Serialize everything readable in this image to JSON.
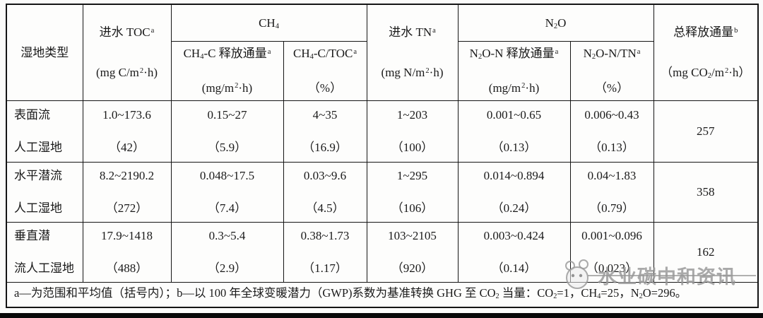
{
  "table": {
    "header": {
      "wetland_type": "湿地类型",
      "influent_toc": {
        "title": "进水 TOC^a^",
        "unit": "(mg C/m^2^·h)"
      },
      "ch4_group": "CH{4}",
      "ch4_flux": {
        "title": "CH{4}-C 释放通量^a^",
        "unit": "(mg/m^2^·h)"
      },
      "ch4_ratio": {
        "title": "CH{4}-C/TOC^a^",
        "unit": "（%）"
      },
      "influent_tn": {
        "title": "进水 TN^a^",
        "unit": "(mg N/m^2^·h)"
      },
      "n2o_group": "N{2}O",
      "n2o_flux": {
        "title": "N{2}O-N 释放通量^a^",
        "unit": "(mg/m^2^·h)"
      },
      "n2o_ratio": {
        "title": "N{2}O-N/TN^a^",
        "unit": "（%）"
      },
      "total_flux": {
        "title": "总释放通量^b^",
        "unit": "（mg CO{2}/m^2^·h）"
      }
    },
    "rows": [
      {
        "cells": [
          {
            "l1": "表面流",
            "l2": "人工湿地"
          },
          {
            "l1": "1.0~173.6",
            "l2": "（42）"
          },
          {
            "l1": "0.15~27",
            "l2": "（5.9）"
          },
          {
            "l1": "4~35",
            "l2": "（16.9）"
          },
          {
            "l1": "1~203",
            "l2": "（100）"
          },
          {
            "l1": "0.001~0.65",
            "l2": "（0.13）"
          },
          {
            "l1": "0.006~0.43",
            "l2": "（0.13）"
          },
          {
            "l1": "257"
          }
        ]
      },
      {
        "cells": [
          {
            "l1": "水平潜流",
            "l2": "人工湿地"
          },
          {
            "l1": "8.2~2190.2",
            "l2": "（272）"
          },
          {
            "l1": "0.048~17.5",
            "l2": "（7.4）"
          },
          {
            "l1": "0.03~9.6",
            "l2": "（4.5）"
          },
          {
            "l1": "1~295",
            "l2": "（106）"
          },
          {
            "l1": "0.014~0.894",
            "l2": "（0.24）"
          },
          {
            "l1": "0.04~1.83",
            "l2": "（0.79）"
          },
          {
            "l1": "358"
          }
        ]
      },
      {
        "cells": [
          {
            "l1": "垂直潜",
            "l2": "流人工湿地"
          },
          {
            "l1": "17.9~1418",
            "l2": "（488）"
          },
          {
            "l1": "0.3~5.4",
            "l2": "（2.9）"
          },
          {
            "l1": "0.38~1.73",
            "l2": "（1.17）"
          },
          {
            "l1": "103~2105",
            "l2": "（920）"
          },
          {
            "l1": "0.003~0.424",
            "l2": "（0.14）"
          },
          {
            "l1": "0.001~0.096",
            "l2": "（0.023）"
          },
          {
            "l1": "162"
          }
        ]
      }
    ],
    "footnote": "a—为范围和平均值（括号内）；b—以 100 年全球变暖潜力（GWP)系数为基准转换 GHG 至 CO{2} 当量：CO{2}=1，CH{4}=25，N{2}O=296。"
  },
  "watermark": {
    "text": "水业碳中和资讯",
    "logo_icon": "face-logo-icon",
    "color": "#969696"
  },
  "colors": {
    "border": "#151515",
    "text": "#1a1a1a",
    "background": "#fbfbfa",
    "bottom_bar": "#080808"
  }
}
